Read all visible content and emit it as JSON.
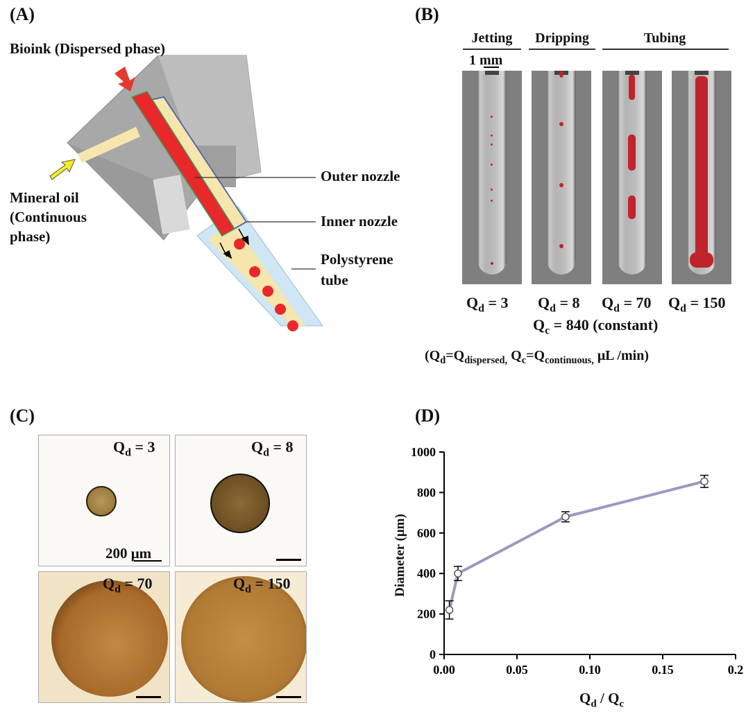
{
  "panels": {
    "a": "(A)",
    "b": "(B)",
    "c": "(C)",
    "d": "(D)"
  },
  "panel_a": {
    "bioink_label": "Bioink (Dispersed phase)",
    "oil_label_1": "Mineral oil",
    "oil_label_2": "(Continuous",
    "oil_label_3": "phase)",
    "outer_nozzle": "Outer nozzle",
    "inner_nozzle": "Inner nozzle",
    "tube_label_1": "Polystyrene",
    "tube_label_2": "tube",
    "colors": {
      "bioink": "#e8282b",
      "oil": "#f6e5ad",
      "block": "#a6a6a6",
      "tube": "#cfe6f4",
      "bioink_arrow": "#e23a2e",
      "oil_arrow": "#f2ee1e"
    }
  },
  "panel_b": {
    "modes": [
      "Jetting",
      "Dripping",
      "Tubing"
    ],
    "scale": "1 mm",
    "qd_values": [
      "3",
      "8",
      "70",
      "150"
    ],
    "qd_symbol": "Q",
    "qd_sub": "d",
    "qc_symbol": "Q",
    "qc_sub": "c",
    "qc_text": "= 840 (constant)",
    "legend_open": "(Q",
    "legend_d_sub": "d",
    "legend_eq1": "=Q",
    "legend_disp_sub": "dispersed,",
    "legend_qc": " Q",
    "legend_c_sub": "c",
    "legend_eq2": "=Q",
    "legend_cont_sub": "continuous,",
    "legend_units": " μL /min)"
  },
  "panel_c": {
    "labels": [
      "3",
      "8",
      "70",
      "150"
    ],
    "scale": "200 μm"
  },
  "chart_data": {
    "type": "line",
    "xlabel": "Q_d / Q_c",
    "ylabel": "Diameter (μm)",
    "xlim": [
      0,
      0.2
    ],
    "ylim": [
      0,
      1000
    ],
    "xticks": [
      "0.00",
      "0.05",
      "0.10",
      "0.15",
      "0.2"
    ],
    "yticks": [
      "0",
      "200",
      "400",
      "600",
      "800",
      "1000"
    ],
    "x": [
      0.0036,
      0.0095,
      0.0833,
      0.1786
    ],
    "y": [
      220,
      400,
      680,
      855
    ],
    "error": [
      45,
      35,
      25,
      30
    ],
    "line_color": "#9a9abf",
    "grid": false
  }
}
